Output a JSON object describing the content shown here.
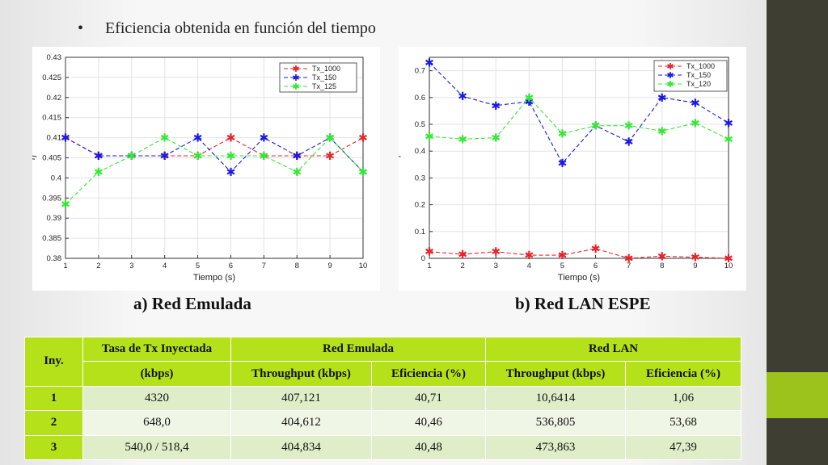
{
  "slide": {
    "bullet": "•",
    "title": "Eficiencia obtenida en función del tiempo",
    "caption_a": "a) Red Emulada",
    "caption_b": "b) Red LAN ESPE"
  },
  "colors": {
    "red": "#e8232a",
    "blue": "#1a1ae6",
    "green": "#34e834",
    "accent": "#b5e11b"
  },
  "chart_data": [
    {
      "type": "line",
      "xlabel": "Tiempo (s)",
      "ylabel": "η",
      "x": [
        1,
        2,
        3,
        4,
        5,
        6,
        7,
        8,
        9,
        10
      ],
      "xlim": [
        1,
        10
      ],
      "ylim": [
        0.38,
        0.43
      ],
      "yticks": [
        0.38,
        0.385,
        0.39,
        0.395,
        0.4,
        0.405,
        0.41,
        0.415,
        0.42,
        0.425,
        0.43
      ],
      "yticklabels": [
        "0.38",
        "0.385",
        "0.39",
        "0.395",
        "0.4",
        "0.405",
        "0.41",
        "0.415",
        "0.42",
        "0.425",
        "0.43"
      ],
      "grid": true,
      "legend": "top-right",
      "series": [
        {
          "name": "Tx_1000",
          "color": "#e8232a",
          "values": [
            0.41,
            0.4055,
            0.4055,
            0.4055,
            0.4055,
            0.41,
            0.4055,
            0.4055,
            0.4055,
            0.41
          ]
        },
        {
          "name": "Tx_150",
          "color": "#1a1ae6",
          "values": [
            0.41,
            0.4055,
            0.4055,
            0.4055,
            0.41,
            0.4015,
            0.41,
            0.4055,
            0.41,
            0.4015
          ]
        },
        {
          "name": "Tx_125",
          "color": "#34e834",
          "values": [
            0.3935,
            0.4015,
            0.4055,
            0.41,
            0.4055,
            0.4055,
            0.4055,
            0.4015,
            0.41,
            0.4015
          ]
        }
      ]
    },
    {
      "type": "line",
      "xlabel": "Tiempo (s)",
      "ylabel": "η",
      "x": [
        1,
        2,
        3,
        4,
        5,
        6,
        7,
        8,
        9,
        10
      ],
      "xlim": [
        1,
        10
      ],
      "ylim": [
        0,
        0.75
      ],
      "yticks": [
        0,
        0.1,
        0.2,
        0.3,
        0.4,
        0.5,
        0.6,
        0.7
      ],
      "yticklabels": [
        "0",
        "0.1",
        "0.2",
        "0.3",
        "0.4",
        "0.5",
        "0.6",
        "0.7"
      ],
      "grid": true,
      "legend": "top-right",
      "series": [
        {
          "name": "Tx_1000",
          "color": "#e8232a",
          "values": [
            0.025,
            0.015,
            0.025,
            0.012,
            0.012,
            0.036,
            0.0,
            0.008,
            0.004,
            0.0
          ]
        },
        {
          "name": "Tx_150",
          "color": "#1a1ae6",
          "values": [
            0.73,
            0.605,
            0.57,
            0.585,
            0.355,
            0.495,
            0.435,
            0.6,
            0.58,
            0.505
          ]
        },
        {
          "name": "Tx_120",
          "color": "#34e834",
          "values": [
            0.455,
            0.445,
            0.45,
            0.6,
            0.465,
            0.495,
            0.495,
            0.475,
            0.505,
            0.445
          ]
        }
      ]
    }
  ],
  "table": {
    "h_iny": "Iny.",
    "h_tasa_1": "Tasa de Tx Inyectada",
    "h_tasa_2": "(kbps)",
    "h_red_emulada": "Red Emulada",
    "h_red_lan": "Red LAN",
    "h_thr_em": "Throughput  (kbps)",
    "h_efi_em": "Eficiencia  (%)",
    "h_thr_lan": "Throughput (kbps)",
    "h_efi_lan": "Eficiencia  (%)",
    "rows": [
      {
        "iny": "1",
        "tasa": "4320",
        "thr_em": "407,121",
        "efi_em": "40,71",
        "thr_lan": "10,6414",
        "efi_lan": "1,06"
      },
      {
        "iny": "2",
        "tasa": "648,0",
        "thr_em": "404,612",
        "efi_em": "40,46",
        "thr_lan": "536,805",
        "efi_lan": "53,68"
      },
      {
        "iny": "3",
        "tasa": "540,0 / 518,4",
        "thr_em": "404,834",
        "efi_em": "40,48",
        "thr_lan": "473,863",
        "efi_lan": "47,39"
      }
    ]
  }
}
